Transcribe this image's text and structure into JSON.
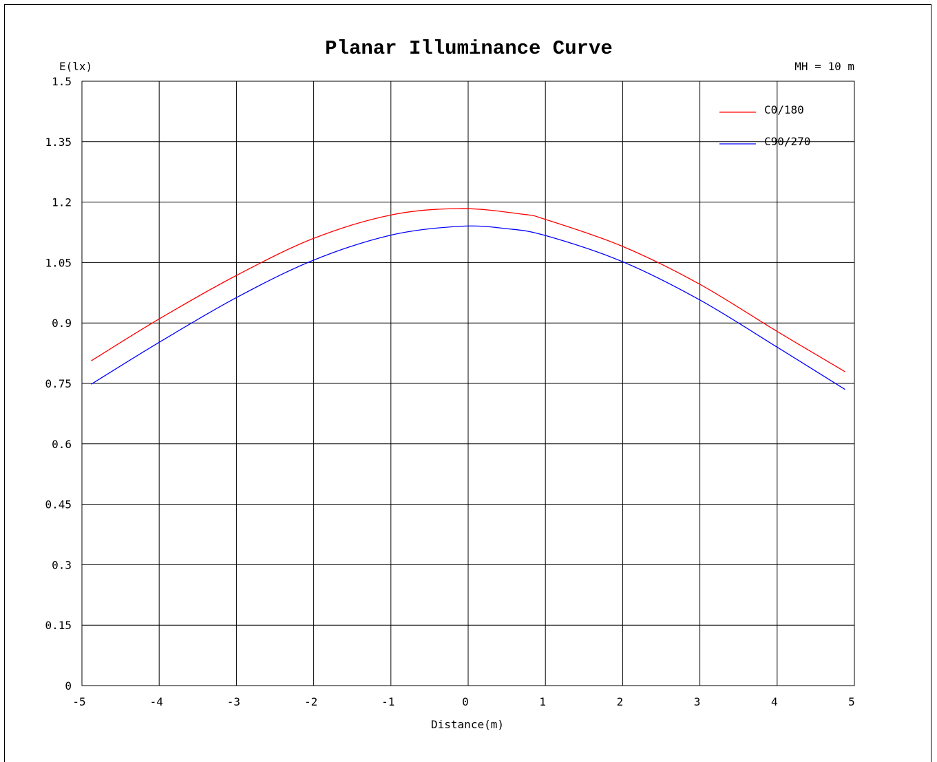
{
  "chart_data": {
    "type": "line",
    "title": "Planar Illuminance Curve",
    "ylabel": "E(lx)",
    "xlabel": "Distance(m)",
    "annotation": "MH = 10 m",
    "xlim": [
      -5,
      5
    ],
    "ylim": [
      0,
      1.5
    ],
    "x_ticks": [
      "-5",
      "-4",
      "-3",
      "-2",
      "-1",
      "0",
      "1",
      "2",
      "3",
      "4",
      "5"
    ],
    "y_ticks": [
      "0",
      "0.15",
      "0.3",
      "0.45",
      "0.6",
      "0.75",
      "0.9",
      "1.05",
      "1.2",
      "1.35",
      "1.5"
    ],
    "grid": true,
    "legend_position": "top-right",
    "series": [
      {
        "name": "C0/180",
        "color": "#ff0000",
        "x": [
          -4.88,
          -4,
          -3,
          -2,
          -1,
          -0.1,
          0.7,
          1,
          2,
          3,
          4,
          4.88
        ],
        "y": [
          0.806,
          0.91,
          1.018,
          1.11,
          1.168,
          1.184,
          1.17,
          1.157,
          1.09,
          0.996,
          0.879,
          0.779
        ]
      },
      {
        "name": "C90/270",
        "color": "#0000ff",
        "x": [
          -4.88,
          -4,
          -3,
          -2,
          -1,
          -0.1,
          0.5,
          1,
          2,
          3,
          4,
          4.88
        ],
        "y": [
          0.748,
          0.852,
          0.963,
          1.056,
          1.118,
          1.14,
          1.134,
          1.117,
          1.052,
          0.957,
          0.84,
          0.735
        ]
      }
    ]
  }
}
